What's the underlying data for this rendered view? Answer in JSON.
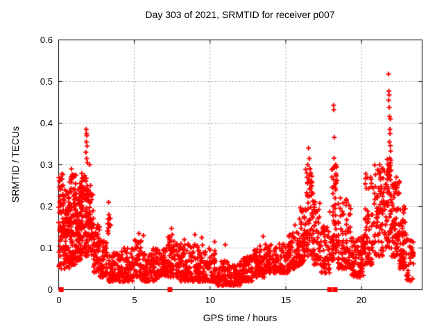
{
  "chart_data": {
    "type": "scatter",
    "title": "Day 303 of 2021, SRMTID for receiver p007",
    "xlabel": "GPS time / hours",
    "ylabel": "SRMTID / TECUs",
    "xlim": [
      0,
      24
    ],
    "ylim": [
      0,
      0.6
    ],
    "xticks": {
      "values": [
        0,
        5,
        10,
        15,
        20
      ],
      "labels": [
        "0",
        "5",
        "10",
        "15",
        "20"
      ]
    },
    "yticks": {
      "values": [
        0,
        0.1,
        0.2,
        0.3,
        0.4,
        0.5,
        0.6
      ],
      "labels": [
        "0",
        "0.1",
        "0.2",
        "0.3",
        "0.4",
        "0.5",
        "0.6"
      ]
    },
    "grid": true,
    "grid_style": "dashed",
    "grid_color": "#999999",
    "frame_color": "#000000",
    "background_color": "#ffffff",
    "legend": "none",
    "series": [
      {
        "name": "SRMTID",
        "marker": "plus",
        "marker_size": 7,
        "color": "#ff0000",
        "seed": 303,
        "density_bands": [
          [
            0.0,
            0.3,
            50,
            0.05,
            0.28,
            1.2
          ],
          [
            0.3,
            0.7,
            80,
            0.05,
            0.24,
            1.3
          ],
          [
            0.7,
            1.1,
            90,
            0.06,
            0.28,
            1.4
          ],
          [
            1.1,
            1.5,
            90,
            0.07,
            0.26,
            1.3
          ],
          [
            1.5,
            1.9,
            80,
            0.08,
            0.28,
            1.2
          ],
          [
            1.9,
            2.3,
            60,
            0.08,
            0.24,
            1.2
          ],
          [
            2.3,
            2.7,
            50,
            0.04,
            0.16,
            1.3
          ],
          [
            2.7,
            3.2,
            55,
            0.03,
            0.12,
            1.5
          ],
          [
            3.2,
            3.45,
            14,
            0.05,
            0.21,
            1.0
          ],
          [
            3.3,
            4.0,
            70,
            0.02,
            0.09,
            1.5
          ],
          [
            4.0,
            5.0,
            95,
            0.02,
            0.1,
            1.6
          ],
          [
            5.0,
            5.5,
            50,
            0.03,
            0.12,
            1.4
          ],
          [
            5.5,
            6.5,
            95,
            0.02,
            0.1,
            1.6
          ],
          [
            6.5,
            7.2,
            65,
            0.03,
            0.1,
            1.5
          ],
          [
            7.2,
            7.7,
            50,
            0.03,
            0.13,
            1.3
          ],
          [
            7.7,
            8.6,
            85,
            0.02,
            0.11,
            1.5
          ],
          [
            8.6,
            9.6,
            90,
            0.02,
            0.11,
            1.5
          ],
          [
            9.6,
            10.4,
            80,
            0.02,
            0.1,
            1.6
          ],
          [
            10.4,
            11.2,
            75,
            0.01,
            0.07,
            1.5
          ],
          [
            11.2,
            12.0,
            75,
            0.01,
            0.06,
            1.4
          ],
          [
            12.0,
            12.8,
            75,
            0.02,
            0.08,
            1.4
          ],
          [
            12.8,
            13.6,
            75,
            0.03,
            0.1,
            1.4
          ],
          [
            13.6,
            14.4,
            70,
            0.04,
            0.11,
            1.4
          ],
          [
            14.4,
            15.2,
            70,
            0.04,
            0.11,
            1.4
          ],
          [
            15.2,
            15.9,
            65,
            0.05,
            0.14,
            1.3
          ],
          [
            15.9,
            16.3,
            50,
            0.06,
            0.2,
            1.3
          ],
          [
            16.3,
            16.8,
            60,
            0.08,
            0.3,
            1.5
          ],
          [
            16.8,
            17.3,
            50,
            0.06,
            0.22,
            1.4
          ],
          [
            17.3,
            17.9,
            55,
            0.04,
            0.16,
            1.3
          ],
          [
            17.9,
            18.45,
            70,
            0.07,
            0.3,
            1.5
          ],
          [
            18.45,
            19.3,
            85,
            0.05,
            0.22,
            1.5
          ],
          [
            19.3,
            20.2,
            85,
            0.03,
            0.13,
            1.4
          ],
          [
            20.2,
            20.8,
            60,
            0.06,
            0.28,
            1.6
          ],
          [
            20.8,
            21.5,
            70,
            0.08,
            0.3,
            1.6
          ],
          [
            21.5,
            22.0,
            70,
            0.1,
            0.32,
            1.3
          ],
          [
            22.0,
            22.5,
            70,
            0.08,
            0.26,
            1.4
          ],
          [
            22.5,
            22.95,
            60,
            0.05,
            0.2,
            1.4
          ],
          [
            22.95,
            23.45,
            35,
            0.02,
            0.12,
            1.2
          ]
        ],
        "outlier_points": [
          [
            0.05,
            0.26
          ],
          [
            0.06,
            0.21
          ],
          [
            0.1,
            0.24
          ],
          [
            0.85,
            0.29
          ],
          [
            1.15,
            0.275
          ],
          [
            1.8,
            0.33
          ],
          [
            1.82,
            0.385
          ],
          [
            1.83,
            0.355
          ],
          [
            1.84,
            0.375
          ],
          [
            1.86,
            0.37
          ],
          [
            1.85,
            0.315
          ],
          [
            1.88,
            0.345
          ],
          [
            1.9,
            0.305
          ],
          [
            2.05,
            0.3
          ],
          [
            2.1,
            0.25
          ],
          [
            3.3,
            0.21
          ],
          [
            3.32,
            0.18
          ],
          [
            3.35,
            0.155
          ],
          [
            3.28,
            0.135
          ],
          [
            5.3,
            0.135
          ],
          [
            5.6,
            0.13
          ],
          [
            7.45,
            0.147
          ],
          [
            7.5,
            0.132
          ],
          [
            7.35,
            0.125
          ],
          [
            8.3,
            0.12
          ],
          [
            9.0,
            0.132
          ],
          [
            9.45,
            0.125
          ],
          [
            10.3,
            0.115
          ],
          [
            11.0,
            0.108
          ],
          [
            13.5,
            0.128
          ],
          [
            13.3,
            0.105
          ],
          [
            15.6,
            0.155
          ],
          [
            15.9,
            0.17
          ],
          [
            16.4,
            0.27
          ],
          [
            16.45,
            0.3
          ],
          [
            16.5,
            0.34
          ],
          [
            16.55,
            0.315
          ],
          [
            16.6,
            0.29
          ],
          [
            16.65,
            0.28
          ],
          [
            16.7,
            0.26
          ],
          [
            18.1,
            0.29
          ],
          [
            18.15,
            0.443
          ],
          [
            18.17,
            0.432
          ],
          [
            18.2,
            0.366
          ],
          [
            18.18,
            0.316
          ],
          [
            18.3,
            0.3
          ],
          [
            18.6,
            0.22
          ],
          [
            19.0,
            0.21
          ],
          [
            20.6,
            0.27
          ],
          [
            20.65,
            0.255
          ],
          [
            21.15,
            0.285
          ],
          [
            21.2,
            0.3
          ],
          [
            21.25,
            0.27
          ],
          [
            21.78,
            0.518
          ],
          [
            21.8,
            0.477
          ],
          [
            21.82,
            0.468
          ],
          [
            21.79,
            0.455
          ],
          [
            21.83,
            0.438
          ],
          [
            21.85,
            0.416
          ],
          [
            21.9,
            0.41
          ],
          [
            21.87,
            0.385
          ],
          [
            21.88,
            0.375
          ],
          [
            21.84,
            0.355
          ],
          [
            21.9,
            0.346
          ],
          [
            21.92,
            0.333
          ],
          [
            21.86,
            0.316
          ],
          [
            21.91,
            0.305
          ],
          [
            22.3,
            0.27
          ],
          [
            22.5,
            0.26
          ],
          [
            23.0,
            0.12
          ],
          [
            23.3,
            0.1
          ],
          [
            23.4,
            0.08
          ]
        ],
        "zero_epoch_markers": [
          0.17,
          7.35,
          17.9,
          18.25
        ]
      }
    ]
  }
}
